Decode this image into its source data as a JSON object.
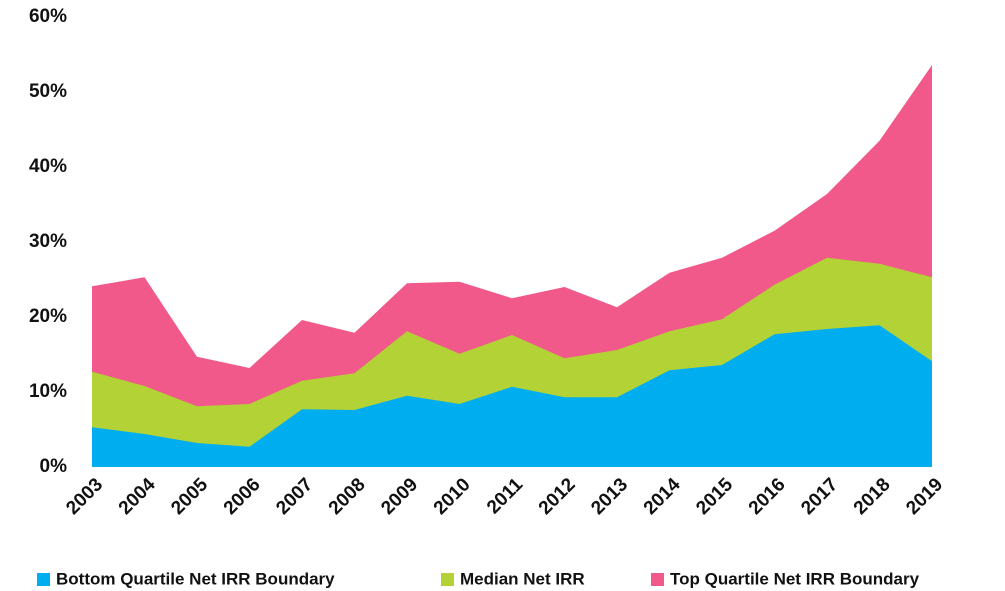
{
  "chart_data": {
    "type": "area",
    "categories": [
      "2003",
      "2004",
      "2005",
      "2006",
      "2007",
      "2008",
      "2009",
      "2010",
      "2011",
      "2012",
      "2013",
      "2014",
      "2015",
      "2016",
      "2017",
      "2018",
      "2019"
    ],
    "series": [
      {
        "name": "Bottom Quartile Net IRR Boundary",
        "color": "#00aeef",
        "values": [
          5.3,
          4.4,
          3.2,
          2.7,
          7.7,
          7.6,
          9.5,
          8.4,
          10.7,
          9.3,
          9.3,
          12.9,
          13.6,
          17.7,
          18.4,
          18.9,
          14.1
        ]
      },
      {
        "name": "Median Net IRR",
        "color": "#b2d235",
        "values": [
          12.7,
          10.8,
          8.1,
          8.4,
          11.5,
          12.5,
          18.1,
          15.1,
          17.6,
          14.5,
          15.6,
          18.1,
          19.7,
          24.3,
          27.9,
          27.1,
          25.3
        ]
      },
      {
        "name": "Top Quartile Net IRR Boundary",
        "color": "#f0598a",
        "values": [
          24.1,
          25.3,
          14.7,
          13.2,
          19.6,
          17.9,
          24.5,
          24.7,
          22.5,
          24.0,
          21.3,
          25.9,
          27.9,
          31.5,
          36.4,
          43.5,
          53.6
        ]
      }
    ],
    "ylim": [
      0,
      60
    ],
    "yticks": [
      {
        "value": 0,
        "label": "0%"
      },
      {
        "value": 10,
        "label": "10%"
      },
      {
        "value": 20,
        "label": "20%"
      },
      {
        "value": 30,
        "label": "30%"
      },
      {
        "value": 40,
        "label": "40%"
      },
      {
        "value": 50,
        "label": "50%"
      },
      {
        "value": 60,
        "label": "60%"
      }
    ],
    "grid": false,
    "legend": "bottom"
  }
}
